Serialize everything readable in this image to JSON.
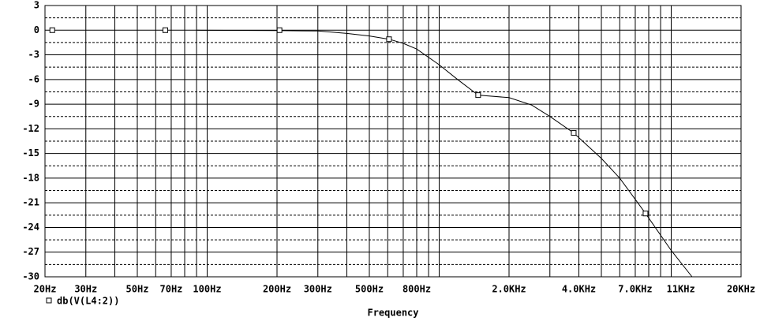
{
  "chart_data": {
    "type": "line",
    "x_label": "Frequency",
    "log_x": true,
    "xlim": [
      20,
      20000
    ],
    "ylim": [
      -30,
      3
    ],
    "xticks": [
      {
        "value": 20,
        "label": "20Hz"
      },
      {
        "value": 30,
        "label": "30Hz"
      },
      {
        "value": 50,
        "label": "50Hz"
      },
      {
        "value": 70,
        "label": "70Hz"
      },
      {
        "value": 100,
        "label": "100Hz"
      },
      {
        "value": 200,
        "label": "200Hz"
      },
      {
        "value": 300,
        "label": "300Hz"
      },
      {
        "value": 500,
        "label": "500Hz"
      },
      {
        "value": 800,
        "label": "800Hz"
      },
      {
        "value": 2000,
        "label": "2.0KHz"
      },
      {
        "value": 4000,
        "label": "4.0KHz"
      },
      {
        "value": 7000,
        "label": "7.0KHz"
      },
      {
        "value": 11000,
        "label": "11KHz"
      },
      {
        "value": 20000,
        "label": "20KHz"
      }
    ],
    "xgrid": [
      20,
      30,
      40,
      50,
      60,
      70,
      80,
      90,
      100,
      200,
      300,
      400,
      500,
      600,
      700,
      800,
      900,
      1000,
      2000,
      3000,
      4000,
      5000,
      6000,
      7000,
      8000,
      9000,
      10000,
      20000
    ],
    "yticks": [
      -30,
      -27,
      -24,
      -21,
      -18,
      -15,
      -12,
      -9,
      -6,
      -3,
      0,
      3
    ],
    "ygrid_dashed": [
      -28.5,
      -25.5,
      -22.5,
      -19.5,
      -16.5,
      -13.5,
      -10.5,
      -7.5,
      -4.5,
      -1.5,
      1.5
    ],
    "series": [
      {
        "name": "db(V(L4:2))",
        "color": "#000000",
        "x": [
          90,
          200,
          300,
          400,
          500,
          608,
          700,
          800,
          1000,
          1200,
          1472,
          2000,
          2500,
          3000,
          3800,
          5000,
          6000,
          7750,
          10000,
          12300
        ],
        "values": [
          0,
          -0.05,
          -0.1,
          -0.4,
          -0.7,
          -1.1,
          -1.6,
          -2.3,
          -4.2,
          -6.0,
          -7.9,
          -8.2,
          -9.1,
          -10.5,
          -12.5,
          -15.6,
          -18,
          -22.3,
          -26.8,
          -30
        ],
        "marker_x": [
          21.5,
          66,
          205,
          608,
          1472,
          3800,
          7750
        ],
        "marker_values": [
          0,
          0,
          0,
          -1.1,
          -7.9,
          -12.5,
          -22.3
        ]
      }
    ]
  }
}
